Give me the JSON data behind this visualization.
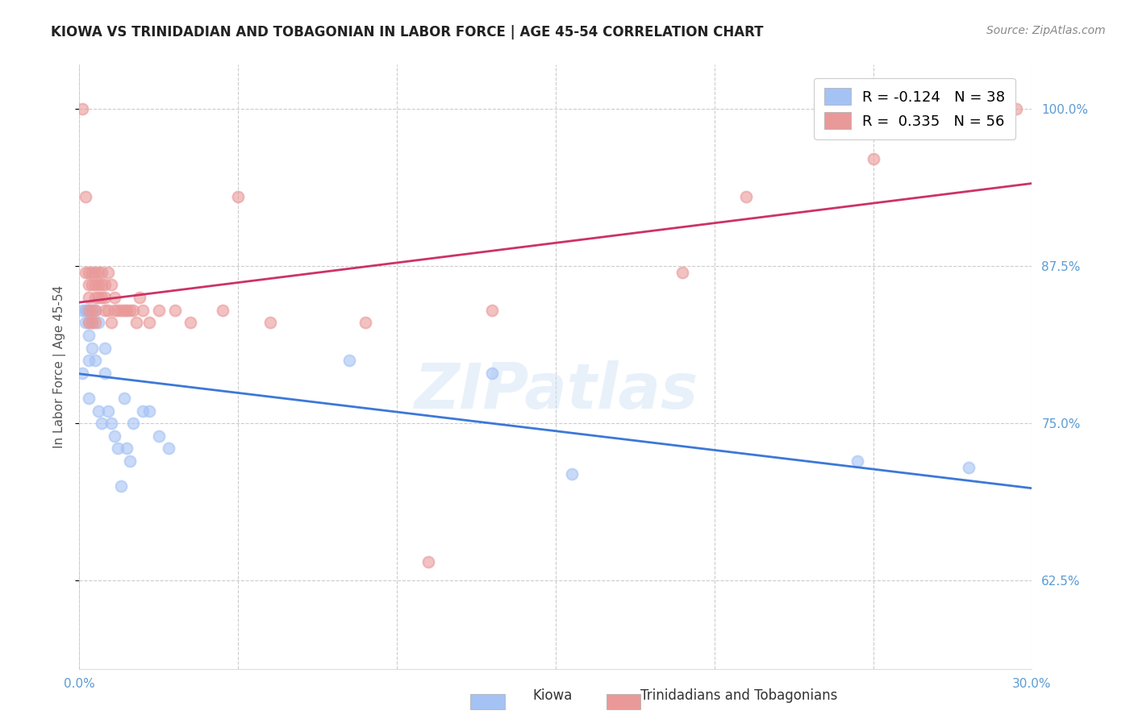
{
  "title": "KIOWA VS TRINIDADIAN AND TOBAGONIAN IN LABOR FORCE | AGE 45-54 CORRELATION CHART",
  "source": "Source: ZipAtlas.com",
  "ylabel": "In Labor Force | Age 45-54",
  "xlim": [
    0.0,
    0.3
  ],
  "ylim": [
    0.555,
    1.035
  ],
  "xticks": [
    0.0,
    0.05,
    0.1,
    0.15,
    0.2,
    0.25,
    0.3
  ],
  "xtick_labels": [
    "0.0%",
    "",
    "",
    "",
    "",
    "",
    "30.0%"
  ],
  "yticks": [
    0.625,
    0.75,
    0.875,
    1.0
  ],
  "ytick_labels": [
    "62.5%",
    "75.0%",
    "87.5%",
    "100.0%"
  ],
  "background_color": "#ffffff",
  "grid_color": "#cccccc",
  "blue_scatter_color": "#a4c2f4",
  "pink_scatter_color": "#ea9999",
  "blue_line_color": "#3c78d8",
  "pink_line_color": "#cc3366",
  "legend_blue_label": "R = -0.124   N = 38",
  "legend_pink_label": "R =  0.335   N = 56",
  "watermark": "ZIPatlas",
  "kiowa_x": [
    0.001,
    0.001,
    0.002,
    0.002,
    0.002,
    0.003,
    0.003,
    0.003,
    0.003,
    0.003,
    0.004,
    0.004,
    0.004,
    0.005,
    0.005,
    0.006,
    0.006,
    0.007,
    0.008,
    0.008,
    0.009,
    0.01,
    0.011,
    0.012,
    0.013,
    0.014,
    0.015,
    0.016,
    0.017,
    0.02,
    0.022,
    0.025,
    0.028,
    0.085,
    0.13,
    0.155,
    0.245,
    0.28
  ],
  "kiowa_y": [
    0.84,
    0.79,
    0.84,
    0.84,
    0.83,
    0.84,
    0.83,
    0.82,
    0.8,
    0.77,
    0.84,
    0.83,
    0.81,
    0.84,
    0.8,
    0.83,
    0.76,
    0.75,
    0.81,
    0.79,
    0.76,
    0.75,
    0.74,
    0.73,
    0.7,
    0.77,
    0.73,
    0.72,
    0.75,
    0.76,
    0.76,
    0.74,
    0.73,
    0.8,
    0.79,
    0.71,
    0.72,
    0.715
  ],
  "tt_x": [
    0.001,
    0.002,
    0.002,
    0.003,
    0.003,
    0.003,
    0.003,
    0.003,
    0.004,
    0.004,
    0.004,
    0.004,
    0.005,
    0.005,
    0.005,
    0.005,
    0.005,
    0.006,
    0.006,
    0.006,
    0.007,
    0.007,
    0.007,
    0.008,
    0.008,
    0.008,
    0.009,
    0.009,
    0.01,
    0.01,
    0.011,
    0.011,
    0.012,
    0.013,
    0.014,
    0.015,
    0.016,
    0.017,
    0.018,
    0.019,
    0.02,
    0.022,
    0.025,
    0.03,
    0.035,
    0.045,
    0.05,
    0.06,
    0.09,
    0.11,
    0.13,
    0.19,
    0.21,
    0.25,
    0.28,
    0.295
  ],
  "tt_y": [
    1.0,
    0.93,
    0.87,
    0.87,
    0.86,
    0.85,
    0.84,
    0.83,
    0.87,
    0.86,
    0.84,
    0.83,
    0.87,
    0.86,
    0.85,
    0.84,
    0.83,
    0.87,
    0.86,
    0.85,
    0.87,
    0.86,
    0.85,
    0.86,
    0.85,
    0.84,
    0.87,
    0.84,
    0.86,
    0.83,
    0.85,
    0.84,
    0.84,
    0.84,
    0.84,
    0.84,
    0.84,
    0.84,
    0.83,
    0.85,
    0.84,
    0.83,
    0.84,
    0.84,
    0.83,
    0.84,
    0.93,
    0.83,
    0.83,
    0.64,
    0.84,
    0.87,
    0.93,
    0.96,
    0.99,
    1.0
  ]
}
